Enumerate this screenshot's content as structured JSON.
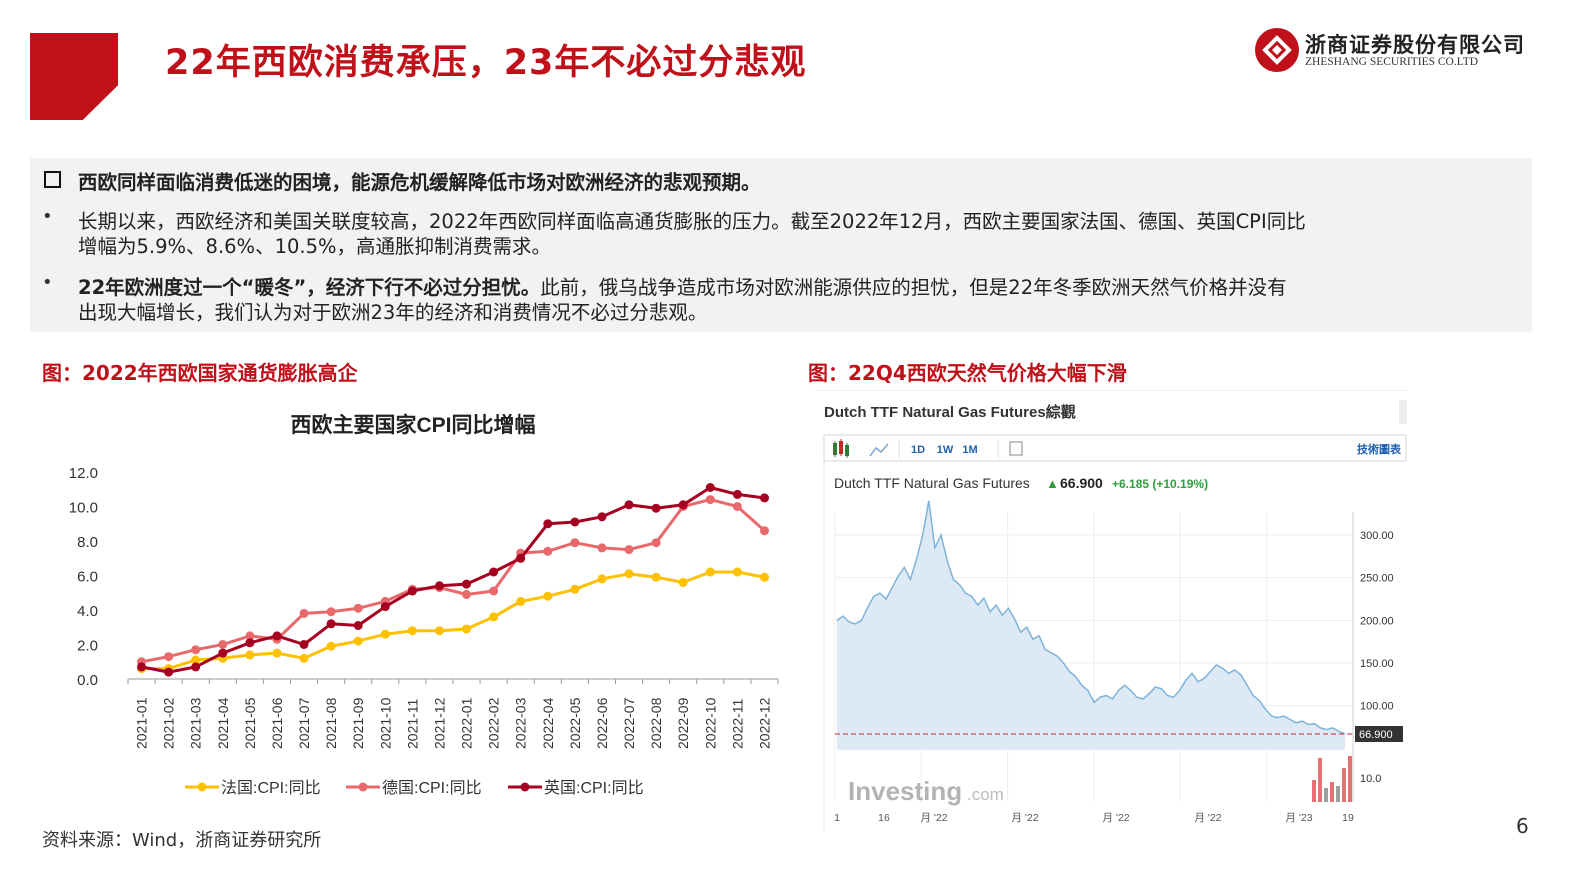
{
  "header": {
    "title": "22年西欧消费承压，23年不必过分悲观",
    "logo_cn": "浙商证券股份有限公司",
    "logo_en": "ZHESHANG SECURITIES CO.LTD"
  },
  "summary": {
    "headline": "西欧同样面临消费低迷的困境，能源危机缓解降低市场对欧洲经济的悲观预期。",
    "bullet1_line1": "长期以来，西欧经济和美国关联度较高，2022年西欧同样面临高通货膨胀的压力。截至2022年12月，西欧主要国家法国、德国、英国CPI同比",
    "bullet1_line2": "增幅为5.9%、8.6%、10.5%，高通胀抑制消费需求。",
    "bullet2_bold": "22年欧洲度过一个“暖冬”，经济下行不必过分担忧。",
    "bullet2_rest": "此前，俄乌战争造成市场对欧洲能源供应的担忧，但是22年冬季欧洲天然气价格并没有",
    "bullet2_line2": "出现大幅增长，我们认为对于欧洲23年的经济和消费情况不必过分悲观。"
  },
  "figure_left_caption": "图：2022年西欧国家通货膨胀高企",
  "figure_right_caption": "图：22Q4西欧天然气价格大幅下滑",
  "chart_data": [
    {
      "type": "line",
      "title": "西欧主要国家CPI同比增幅",
      "categories": [
        "2021-01",
        "2021-02",
        "2021-03",
        "2021-04",
        "2021-05",
        "2021-06",
        "2021-07",
        "2021-08",
        "2021-09",
        "2021-10",
        "2021-11",
        "2021-12",
        "2022-01",
        "2022-02",
        "2022-03",
        "2022-04",
        "2022-05",
        "2022-06",
        "2022-07",
        "2022-08",
        "2022-09",
        "2022-10",
        "2022-11",
        "2022-12"
      ],
      "y_ticks": [
        "0.0",
        "2.0",
        "4.0",
        "6.0",
        "8.0",
        "10.0",
        "12.0"
      ],
      "ylim": [
        0,
        12
      ],
      "legend_position": "bottom",
      "series": [
        {
          "name": "法国:CPI:同比",
          "color": "#ffc000",
          "values": [
            0.6,
            0.6,
            1.1,
            1.2,
            1.4,
            1.5,
            1.2,
            1.9,
            2.2,
            2.6,
            2.8,
            2.8,
            2.9,
            3.6,
            4.5,
            4.8,
            5.2,
            5.8,
            6.1,
            5.9,
            5.6,
            6.2,
            6.2,
            5.9
          ]
        },
        {
          "name": "德国:CPI:同比",
          "color": "#e8696b",
          "values": [
            1.0,
            1.3,
            1.7,
            2.0,
            2.5,
            2.3,
            3.8,
            3.9,
            4.1,
            4.5,
            5.2,
            5.3,
            4.9,
            5.1,
            7.3,
            7.4,
            7.9,
            7.6,
            7.5,
            7.9,
            10.0,
            10.4,
            10.0,
            8.6
          ]
        },
        {
          "name": "英国:CPI:同比",
          "color": "#a50021",
          "values": [
            0.7,
            0.4,
            0.7,
            1.5,
            2.1,
            2.5,
            2.0,
            3.2,
            3.1,
            4.2,
            5.1,
            5.4,
            5.5,
            6.2,
            7.0,
            9.0,
            9.1,
            9.4,
            10.1,
            9.9,
            10.1,
            11.1,
            10.7,
            10.5
          ]
        }
      ]
    },
    {
      "type": "area",
      "title": "Dutch TTF Natural Gas Futures",
      "panel_title": "Dutch TTF Natural Gas Futures綜觀",
      "toolbar": [
        "1D",
        "1W",
        "1M"
      ],
      "toolbar_right": "技術圖表",
      "last_price": "66.900",
      "change": "+6.185 (+10.19%)",
      "up_arrow": "▲",
      "y_ticks": [
        "300.00",
        "250.00",
        "200.00",
        "150.00",
        "100.00"
      ],
      "last_label": "66.900",
      "volume_tick": "10.0",
      "x_ticks": [
        "1",
        "16",
        "月 '22",
        "月 '22",
        "月 '22",
        "月 '22",
        "月 '23",
        "19"
      ],
      "watermark": "Investing",
      "watermark_suffix": ".com",
      "color_line": "#7fb3d8",
      "color_fill": "#dde9f4",
      "values": [
        200,
        205,
        198,
        196,
        200,
        215,
        228,
        232,
        225,
        238,
        252,
        262,
        248,
        272,
        300,
        340,
        285,
        300,
        270,
        248,
        242,
        232,
        228,
        218,
        226,
        210,
        218,
        206,
        214,
        202,
        186,
        192,
        178,
        182,
        166,
        162,
        158,
        150,
        140,
        134,
        124,
        118,
        104,
        110,
        112,
        108,
        118,
        124,
        118,
        110,
        108,
        114,
        122,
        120,
        112,
        110,
        118,
        130,
        138,
        128,
        132,
        140,
        148,
        144,
        138,
        142,
        136,
        124,
        112,
        106,
        96,
        88,
        86,
        88,
        84,
        80,
        82,
        78,
        79,
        74,
        72,
        74,
        70,
        67
      ]
    }
  ],
  "footer": {
    "source": "资料来源：Wind，浙商证券研究所",
    "page": "6"
  }
}
